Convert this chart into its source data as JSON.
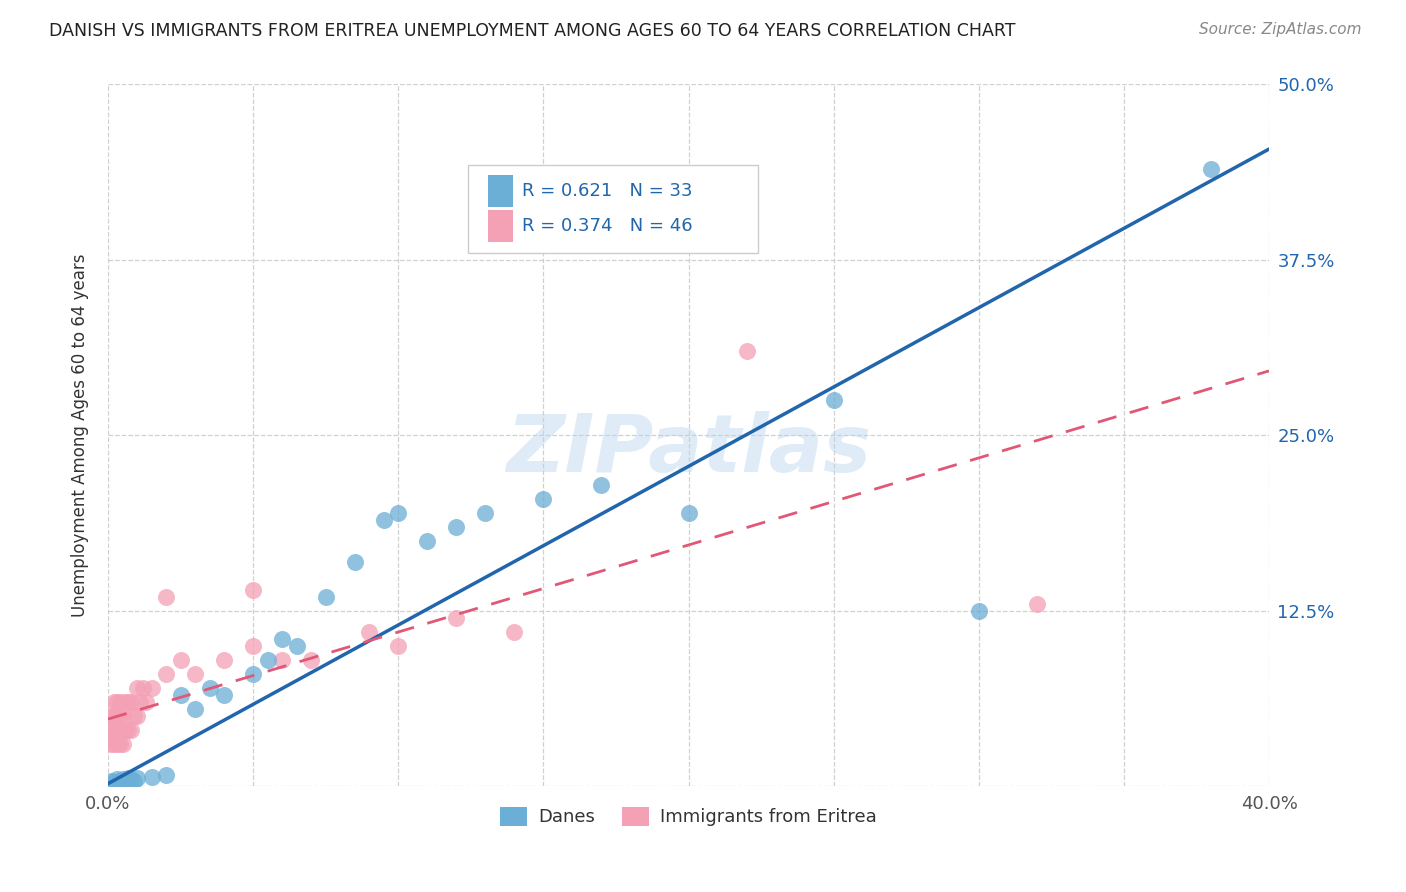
{
  "title": "DANISH VS IMMIGRANTS FROM ERITREA UNEMPLOYMENT AMONG AGES 60 TO 64 YEARS CORRELATION CHART",
  "source": "Source: ZipAtlas.com",
  "ylabel": "Unemployment Among Ages 60 to 64 years",
  "xlim": [
    0.0,
    0.4
  ],
  "ylim": [
    0.0,
    0.5
  ],
  "xticks": [
    0.0,
    0.05,
    0.1,
    0.15,
    0.2,
    0.25,
    0.3,
    0.35,
    0.4
  ],
  "yticks": [
    0.0,
    0.125,
    0.25,
    0.375,
    0.5
  ],
  "xticklabels_show": {
    "0.0": "0.0%",
    "0.40": "40.0%"
  },
  "yticklabels_right": [
    "",
    "12.5%",
    "25.0%",
    "37.5%",
    "50.0%"
  ],
  "danes_R": 0.621,
  "danes_N": 33,
  "eritrea_R": 0.374,
  "eritrea_N": 46,
  "danes_color": "#6baed6",
  "eritrea_color": "#f4a0b5",
  "danes_line_color": "#2166ac",
  "eritrea_line_color": "#e05875",
  "danes_line_slope": 1.13,
  "danes_line_intercept": 0.002,
  "eritrea_line_slope": 0.62,
  "eritrea_line_intercept": 0.048,
  "danes_x": [
    0.001,
    0.002,
    0.003,
    0.004,
    0.005,
    0.006,
    0.007,
    0.008,
    0.009,
    0.01,
    0.015,
    0.02,
    0.025,
    0.03,
    0.035,
    0.04,
    0.05,
    0.055,
    0.06,
    0.065,
    0.075,
    0.085,
    0.095,
    0.1,
    0.11,
    0.12,
    0.13,
    0.15,
    0.17,
    0.2,
    0.25,
    0.3,
    0.38
  ],
  "danes_y": [
    0.004,
    0.003,
    0.005,
    0.004,
    0.005,
    0.004,
    0.006,
    0.005,
    0.004,
    0.006,
    0.007,
    0.008,
    0.065,
    0.055,
    0.07,
    0.065,
    0.08,
    0.09,
    0.105,
    0.1,
    0.135,
    0.16,
    0.19,
    0.195,
    0.175,
    0.185,
    0.195,
    0.205,
    0.215,
    0.195,
    0.275,
    0.125,
    0.44
  ],
  "eritrea_x": [
    0.001,
    0.001,
    0.001,
    0.002,
    0.002,
    0.002,
    0.002,
    0.003,
    0.003,
    0.003,
    0.003,
    0.004,
    0.004,
    0.004,
    0.004,
    0.005,
    0.005,
    0.005,
    0.006,
    0.006,
    0.007,
    0.007,
    0.008,
    0.008,
    0.009,
    0.01,
    0.01,
    0.011,
    0.012,
    0.013,
    0.015,
    0.02,
    0.025,
    0.03,
    0.04,
    0.05,
    0.06,
    0.07,
    0.09,
    0.1,
    0.12,
    0.14,
    0.02,
    0.05,
    0.22,
    0.32
  ],
  "eritrea_y": [
    0.03,
    0.04,
    0.05,
    0.03,
    0.04,
    0.05,
    0.06,
    0.03,
    0.04,
    0.05,
    0.06,
    0.03,
    0.04,
    0.05,
    0.06,
    0.03,
    0.04,
    0.05,
    0.04,
    0.06,
    0.04,
    0.06,
    0.04,
    0.06,
    0.05,
    0.05,
    0.07,
    0.06,
    0.07,
    0.06,
    0.07,
    0.08,
    0.09,
    0.08,
    0.09,
    0.1,
    0.09,
    0.09,
    0.11,
    0.1,
    0.12,
    0.11,
    0.135,
    0.14,
    0.31,
    0.13
  ],
  "watermark_text": "ZIPatlas",
  "legend_danes_label": "Danes",
  "legend_eritrea_label": "Immigrants from Eritrea",
  "background_color": "#ffffff",
  "grid_color": "#d0d0d0"
}
